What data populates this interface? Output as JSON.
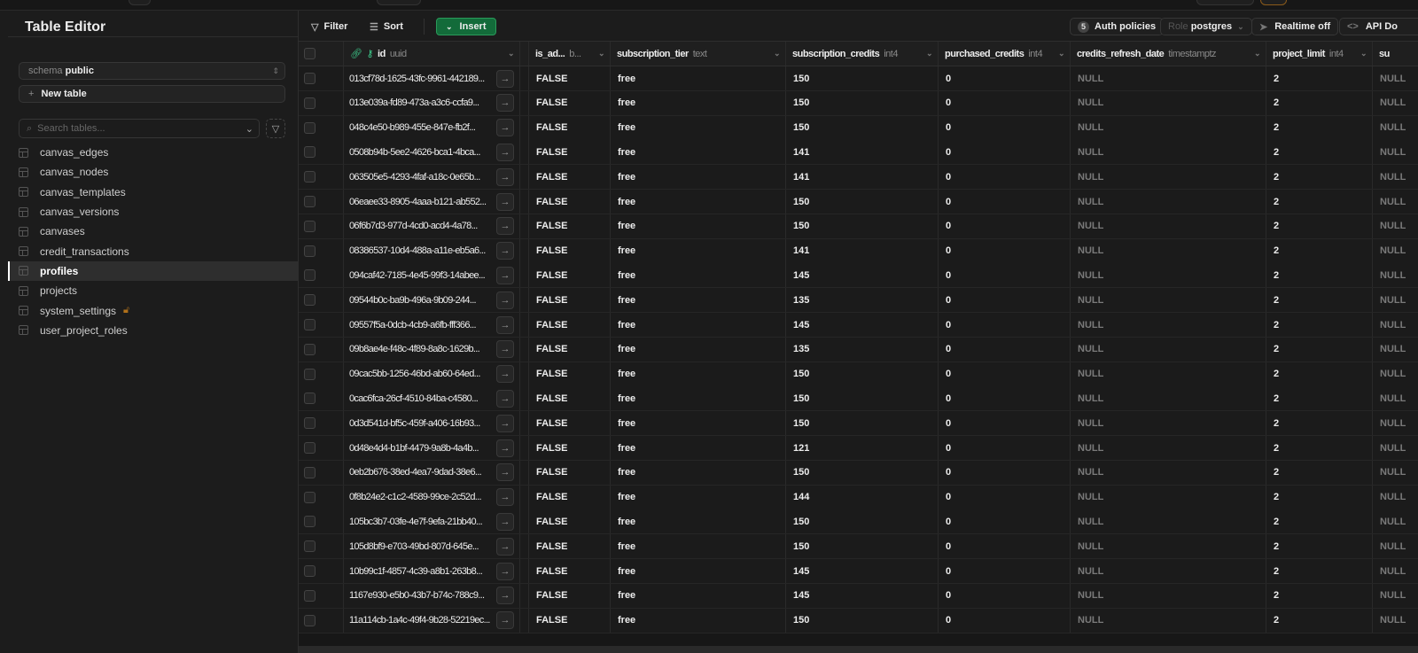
{
  "sidebar": {
    "title": "Table Editor",
    "schema_label": "schema",
    "schema_value": "public",
    "new_table": "New table",
    "search_placeholder": "Search tables...",
    "tables": [
      {
        "name": "canvas_edges"
      },
      {
        "name": "canvas_nodes"
      },
      {
        "name": "canvas_templates"
      },
      {
        "name": "canvas_versions"
      },
      {
        "name": "canvases"
      },
      {
        "name": "credit_transactions"
      },
      {
        "name": "profiles",
        "active": true
      },
      {
        "name": "projects"
      },
      {
        "name": "system_settings",
        "locked": true
      },
      {
        "name": "user_project_roles"
      }
    ]
  },
  "toolbar": {
    "filter": "Filter",
    "sort": "Sort",
    "insert": "Insert",
    "auth_count": "5",
    "auth_policies": "Auth policies",
    "role_label": "Role",
    "role_value": "postgres",
    "realtime": "Realtime off",
    "api_docs": "API Do"
  },
  "columns": [
    {
      "name": "id",
      "type": "uuid"
    },
    {
      "name": "is_ad...",
      "type": "b..."
    },
    {
      "name": "subscription_tier",
      "type": "text"
    },
    {
      "name": "subscription_credits",
      "type": "int4"
    },
    {
      "name": "purchased_credits",
      "type": "int4"
    },
    {
      "name": "credits_refresh_date",
      "type": "timestamptz"
    },
    {
      "name": "project_limit",
      "type": "int4"
    },
    {
      "name": "su",
      "type": ""
    }
  ],
  "rows": [
    [
      "013cf78d-1625-43fc-9961-442189...",
      "FALSE",
      "free",
      "150",
      "0",
      "NULL",
      "2",
      "NULL"
    ],
    [
      "013e039a-fd89-473a-a3c6-ccfa9...",
      "FALSE",
      "free",
      "150",
      "0",
      "NULL",
      "2",
      "NULL"
    ],
    [
      "048c4e50-b989-455e-847e-fb2f...",
      "FALSE",
      "free",
      "150",
      "0",
      "NULL",
      "2",
      "NULL"
    ],
    [
      "0508b94b-5ee2-4626-bca1-4bca...",
      "FALSE",
      "free",
      "141",
      "0",
      "NULL",
      "2",
      "NULL"
    ],
    [
      "063505e5-4293-4faf-a18c-0e65b...",
      "FALSE",
      "free",
      "141",
      "0",
      "NULL",
      "2",
      "NULL"
    ],
    [
      "06eaee33-8905-4aaa-b121-ab552...",
      "FALSE",
      "free",
      "150",
      "0",
      "NULL",
      "2",
      "NULL"
    ],
    [
      "06f6b7d3-977d-4cd0-acd4-4a78...",
      "FALSE",
      "free",
      "150",
      "0",
      "NULL",
      "2",
      "NULL"
    ],
    [
      "08386537-10d4-488a-a11e-eb5a6...",
      "FALSE",
      "free",
      "141",
      "0",
      "NULL",
      "2",
      "NULL"
    ],
    [
      "094caf42-7185-4e45-99f3-14abee...",
      "FALSE",
      "free",
      "145",
      "0",
      "NULL",
      "2",
      "NULL"
    ],
    [
      "09544b0c-ba9b-496a-9b09-244...",
      "FALSE",
      "free",
      "135",
      "0",
      "NULL",
      "2",
      "NULL"
    ],
    [
      "09557f5a-0dcb-4cb9-a6fb-fff366...",
      "FALSE",
      "free",
      "145",
      "0",
      "NULL",
      "2",
      "NULL"
    ],
    [
      "09b8ae4e-f48c-4f89-8a8c-1629b...",
      "FALSE",
      "free",
      "135",
      "0",
      "NULL",
      "2",
      "NULL"
    ],
    [
      "09cac5bb-1256-46bd-ab60-64ed...",
      "FALSE",
      "free",
      "150",
      "0",
      "NULL",
      "2",
      "NULL"
    ],
    [
      "0cac6fca-26cf-4510-84ba-c4580...",
      "FALSE",
      "free",
      "150",
      "0",
      "NULL",
      "2",
      "NULL"
    ],
    [
      "0d3d541d-bf5c-459f-a406-16b93...",
      "FALSE",
      "free",
      "150",
      "0",
      "NULL",
      "2",
      "NULL"
    ],
    [
      "0d48e4d4-b1bf-4479-9a8b-4a4b...",
      "FALSE",
      "free",
      "121",
      "0",
      "NULL",
      "2",
      "NULL"
    ],
    [
      "0eb2b676-38ed-4ea7-9dad-38e6...",
      "FALSE",
      "free",
      "150",
      "0",
      "NULL",
      "2",
      "NULL"
    ],
    [
      "0f8b24e2-c1c2-4589-99ce-2c52d...",
      "FALSE",
      "free",
      "144",
      "0",
      "NULL",
      "2",
      "NULL"
    ],
    [
      "105bc3b7-03fe-4e7f-9efa-21bb40...",
      "FALSE",
      "free",
      "150",
      "0",
      "NULL",
      "2",
      "NULL"
    ],
    [
      "105d8bf9-e703-49bd-807d-645e...",
      "FALSE",
      "free",
      "150",
      "0",
      "NULL",
      "2",
      "NULL"
    ],
    [
      "10b99c1f-4857-4c39-a8b1-263b8...",
      "FALSE",
      "free",
      "145",
      "0",
      "NULL",
      "2",
      "NULL"
    ],
    [
      "1167e930-e5b0-43b7-b74c-788c9...",
      "FALSE",
      "free",
      "145",
      "0",
      "NULL",
      "2",
      "NULL"
    ],
    [
      "11a114cb-1a4c-49f4-9b28-52219ec...",
      "FALSE",
      "free",
      "150",
      "0",
      "NULL",
      "2",
      "NULL"
    ]
  ]
}
